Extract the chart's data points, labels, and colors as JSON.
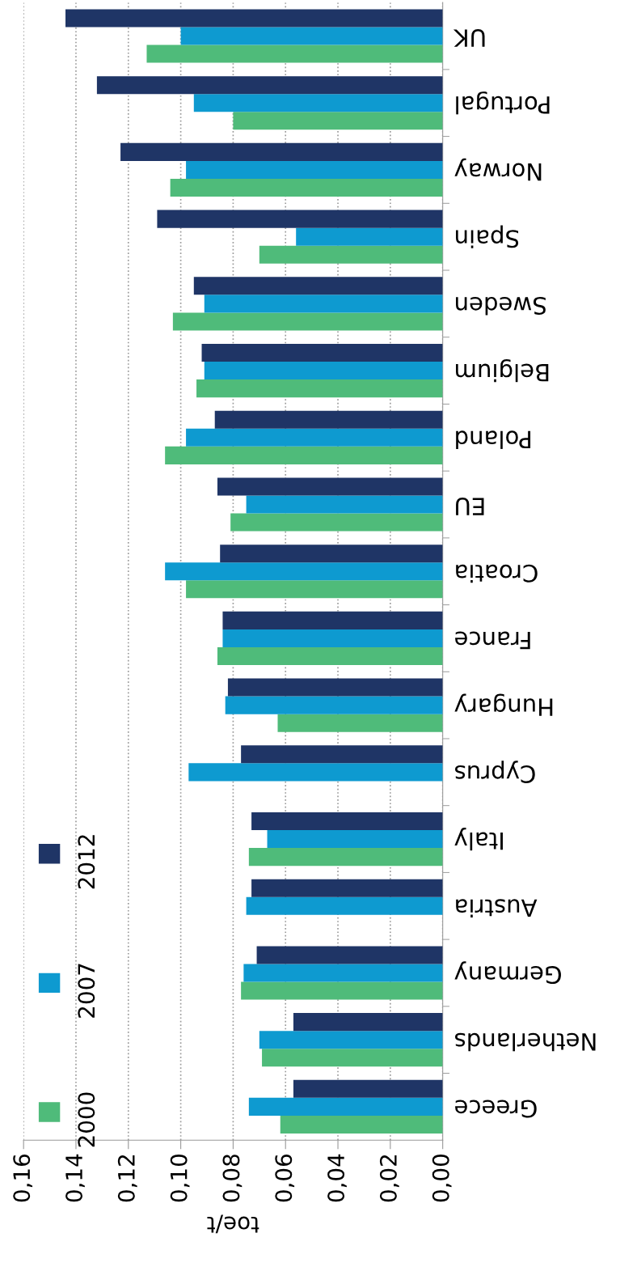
{
  "chart_data": {
    "type": "bar",
    "orientation": "horizontal",
    "xlabel": "toe/t",
    "categories": [
      "UK",
      "Portugal",
      "Norway",
      "Spain",
      "Sweden",
      "Belgium",
      "Poland",
      "EU",
      "Croatia",
      "France",
      "Hungary",
      "Cyprus",
      "Italy",
      "Austria",
      "Germany",
      "Netherlands",
      "Greece"
    ],
    "series": [
      {
        "name": "2000",
        "color": "#4fbb7a",
        "values": [
          0.113,
          0.08,
          0.104,
          0.07,
          0.103,
          0.094,
          0.106,
          0.081,
          0.098,
          0.086,
          0.063,
          null,
          0.074,
          null,
          0.077,
          0.069,
          0.062
        ]
      },
      {
        "name": "2007",
        "color": "#0e9ad0",
        "values": [
          0.1,
          0.095,
          0.098,
          0.056,
          0.091,
          0.091,
          0.098,
          0.075,
          0.106,
          0.084,
          0.083,
          0.097,
          0.067,
          0.075,
          0.076,
          0.07,
          0.074
        ]
      },
      {
        "name": "2012",
        "color": "#1f3566",
        "values": [
          0.144,
          0.132,
          0.123,
          0.109,
          0.095,
          0.092,
          0.087,
          0.086,
          0.085,
          0.084,
          0.082,
          0.077,
          0.073,
          0.073,
          0.071,
          0.057,
          0.057
        ]
      }
    ],
    "xlim": [
      0.16,
      0
    ],
    "xticks": [
      {
        "value": 0.16,
        "label": "0,16"
      },
      {
        "value": 0.14,
        "label": "0,14"
      },
      {
        "value": 0.12,
        "label": "0,12"
      },
      {
        "value": 0.1,
        "label": "0,10"
      },
      {
        "value": 0.08,
        "label": "0,08"
      },
      {
        "value": 0.06,
        "label": "0,06"
      },
      {
        "value": 0.04,
        "label": "0,04"
      },
      {
        "value": 0.02,
        "label": "0,02"
      },
      {
        "value": 0,
        "label": "0,00"
      }
    ],
    "grid": "x",
    "legend": "bottom left"
  }
}
